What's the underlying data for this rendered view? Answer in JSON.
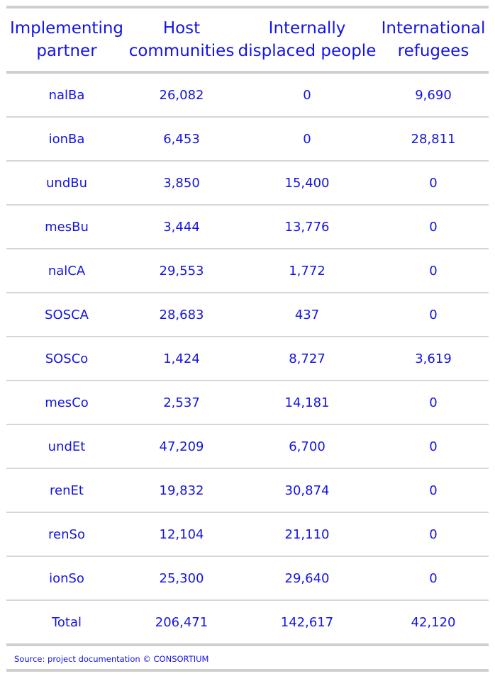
{
  "table": {
    "headers": [
      [
        "Implementing",
        "partner"
      ],
      [
        "Host",
        "communities"
      ],
      [
        "Internally",
        "displaced people"
      ],
      [
        "International",
        "refugees"
      ]
    ],
    "rows": [
      [
        "nalBa",
        "26,082",
        "0",
        "9,690"
      ],
      [
        "ionBa",
        "6,453",
        "0",
        "28,811"
      ],
      [
        "undBu",
        "3,850",
        "15,400",
        "0"
      ],
      [
        "mesBu",
        "3,444",
        "13,776",
        "0"
      ],
      [
        "nalCA",
        "29,553",
        "1,772",
        "0"
      ],
      [
        "SOSCA",
        "28,683",
        "437",
        "0"
      ],
      [
        "SOSCo",
        "1,424",
        "8,727",
        "3,619"
      ],
      [
        "mesCo",
        "2,537",
        "14,181",
        "0"
      ],
      [
        "undEt",
        "47,209",
        "6,700",
        "0"
      ],
      [
        "renEt",
        "19,832",
        "30,874",
        "0"
      ],
      [
        "renSo",
        "12,104",
        "21,110",
        "0"
      ],
      [
        "ionSo",
        "25,300",
        "29,640",
        "0"
      ]
    ],
    "total": [
      "Total",
      "206,471",
      "142,617",
      "42,120"
    ]
  },
  "source": "Source: project documentation © CONSORTIUM"
}
